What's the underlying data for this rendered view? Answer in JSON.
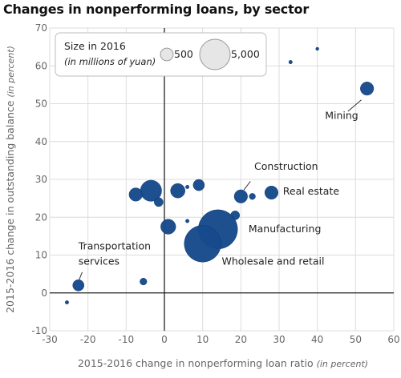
{
  "chart_data": {
    "type": "scatter",
    "title": "Changes in nonperforming loans, by sector",
    "xlabel": "2015-2016 change in nonperforming loan ratio",
    "xlabel_unit": "(in percent)",
    "ylabel": "2015-2016 change in outstanding balance",
    "ylabel_unit": "(in percent)",
    "xlim": [
      -30,
      60
    ],
    "ylim": [
      -10,
      70
    ],
    "xticks": [
      -30,
      -20,
      -10,
      0,
      10,
      20,
      30,
      40,
      50,
      60
    ],
    "yticks": [
      -10,
      0,
      10,
      20,
      30,
      40,
      50,
      60,
      70
    ],
    "grid": true,
    "bubble_color": "#174a8b",
    "legend": {
      "title": "Size in 2016",
      "subtitle": "(in millions of yuan)",
      "entries": [
        {
          "label": "500",
          "size": 500
        },
        {
          "label": "5,000",
          "size": 5000
        }
      ]
    },
    "points": [
      {
        "x": 53,
        "y": 54,
        "size": 550,
        "label": "Mining"
      },
      {
        "x": 40,
        "y": 64.5,
        "size": 30
      },
      {
        "x": 33,
        "y": 61,
        "size": 40
      },
      {
        "x": 28,
        "y": 26.5,
        "size": 550,
        "label": "Real estate"
      },
      {
        "x": 20,
        "y": 25.5,
        "size": 550,
        "label": "Construction"
      },
      {
        "x": 23,
        "y": 25.5,
        "size": 120
      },
      {
        "x": 18.5,
        "y": 20.5,
        "size": 250
      },
      {
        "x": 14,
        "y": 16.8,
        "size": 4800,
        "label": "Manufacturing"
      },
      {
        "x": 10,
        "y": 13,
        "size": 4200,
        "label": "Wholesale and retail"
      },
      {
        "x": 9,
        "y": 28.5,
        "size": 400
      },
      {
        "x": 6,
        "y": 28,
        "size": 40
      },
      {
        "x": 3.5,
        "y": 27,
        "size": 650
      },
      {
        "x": 6,
        "y": 19,
        "size": 40
      },
      {
        "x": 1,
        "y": 17.5,
        "size": 700
      },
      {
        "x": -3.5,
        "y": 27,
        "size": 1400
      },
      {
        "x": -1.5,
        "y": 24,
        "size": 250
      },
      {
        "x": -7.5,
        "y": 26,
        "size": 550
      },
      {
        "x": -5.5,
        "y": 3,
        "size": 150
      },
      {
        "x": -22.5,
        "y": 2,
        "size": 400,
        "label": "Transportation services"
      },
      {
        "x": -25.5,
        "y": -2.5,
        "size": 40
      }
    ],
    "annotations": [
      {
        "text": "Mining",
        "x": 42,
        "y": 46
      },
      {
        "text": "Construction",
        "x": 23.5,
        "y": 32.5
      },
      {
        "text": "Real estate",
        "x": 31,
        "y": 26
      },
      {
        "text": "Manufacturing",
        "x": 22,
        "y": 16
      },
      {
        "text": "Wholesale and retail",
        "x": 15,
        "y": 7.5
      },
      {
        "text": "Transportation",
        "x": -22.5,
        "y": 11.5
      },
      {
        "text": "services",
        "x": -22.5,
        "y": 7.5
      }
    ]
  }
}
